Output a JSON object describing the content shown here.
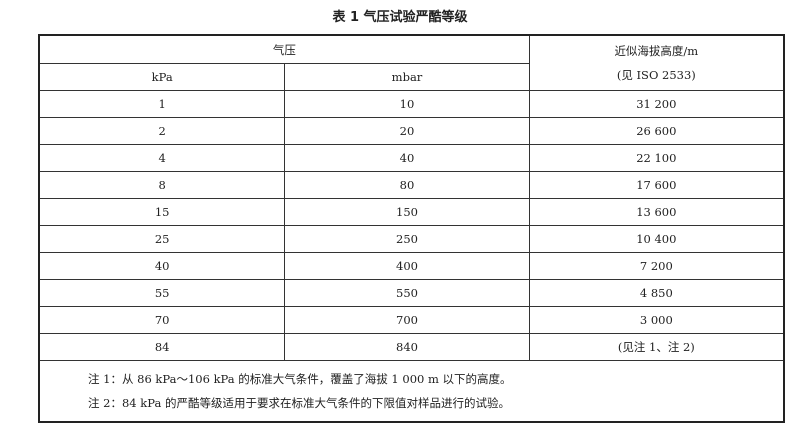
{
  "title": "表 1  气压试验严酷等级",
  "headers": {
    "pressure": "气压",
    "kpa": "kPa",
    "mbar": "mbar",
    "altitude_line1": "近似海拔高度/m",
    "altitude_line2": "(见 ISO 2533)"
  },
  "rows": [
    {
      "kpa": "1",
      "mbar": "10",
      "alt": "31 200"
    },
    {
      "kpa": "2",
      "mbar": "20",
      "alt": "26 600"
    },
    {
      "kpa": "4",
      "mbar": "40",
      "alt": "22 100"
    },
    {
      "kpa": "8",
      "mbar": "80",
      "alt": "17 600"
    },
    {
      "kpa": "15",
      "mbar": "150",
      "alt": "13 600"
    },
    {
      "kpa": "25",
      "mbar": "250",
      "alt": "10 400"
    },
    {
      "kpa": "40",
      "mbar": "400",
      "alt": "7 200"
    },
    {
      "kpa": "55",
      "mbar": "550",
      "alt": "4 850"
    },
    {
      "kpa": "70",
      "mbar": "700",
      "alt": "3 000"
    },
    {
      "kpa": "84",
      "mbar": "840",
      "alt": "(见注 1、注 2)"
    }
  ],
  "notes": [
    "注 1：从 86 kPa～106 kPa 的标准大气条件，覆盖了海拔 1 000 m 以下的高度。",
    "注 2：84 kPa 的严酷等级适用于要求在标准大气条件的下限值对样品进行的试验。"
  ]
}
